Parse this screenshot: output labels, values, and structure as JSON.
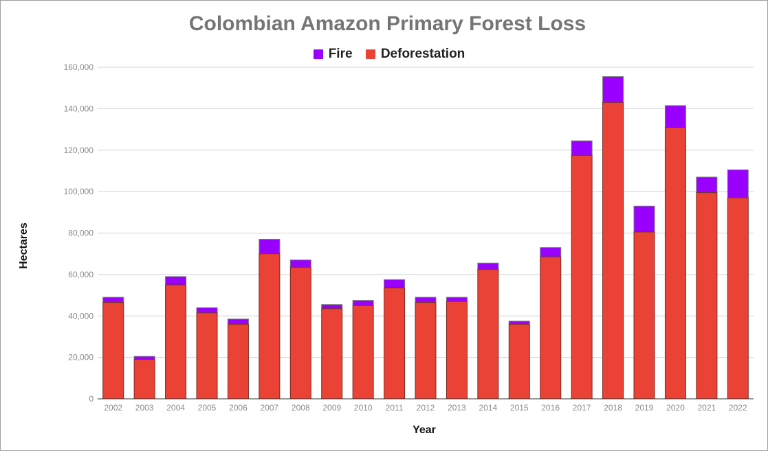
{
  "chart_data": {
    "type": "bar",
    "stacked": true,
    "title": "Colombian Amazon Primary Forest Loss",
    "xlabel": "Year",
    "ylabel": "Hectares",
    "ylim": [
      0,
      160000
    ],
    "yticks": [
      "0",
      "20,000",
      "40,000",
      "60,000",
      "80,000",
      "100,000",
      "120,000",
      "140,000",
      "160,000"
    ],
    "grid": true,
    "legend_position": "top",
    "categories": [
      "2002",
      "2003",
      "2004",
      "2005",
      "2006",
      "2007",
      "2008",
      "2009",
      "2010",
      "2011",
      "2012",
      "2013",
      "2014",
      "2015",
      "2016",
      "2017",
      "2018",
      "2019",
      "2020",
      "2021",
      "2022"
    ],
    "series": [
      {
        "name": "Deforestation",
        "color": "#ea4335",
        "values": [
          46500,
          19000,
          55000,
          41500,
          36000,
          70000,
          63500,
          43500,
          45000,
          53500,
          46500,
          47000,
          62500,
          36000,
          68500,
          117500,
          143000,
          80500,
          131000,
          99500,
          97000
        ]
      },
      {
        "name": "Fire",
        "color": "#9900ff",
        "values": [
          2500,
          1500,
          4000,
          2500,
          2500,
          7000,
          3500,
          2000,
          2500,
          4000,
          2500,
          2000,
          3000,
          1500,
          4500,
          7000,
          12500,
          12500,
          10500,
          7500,
          13500
        ]
      }
    ]
  }
}
